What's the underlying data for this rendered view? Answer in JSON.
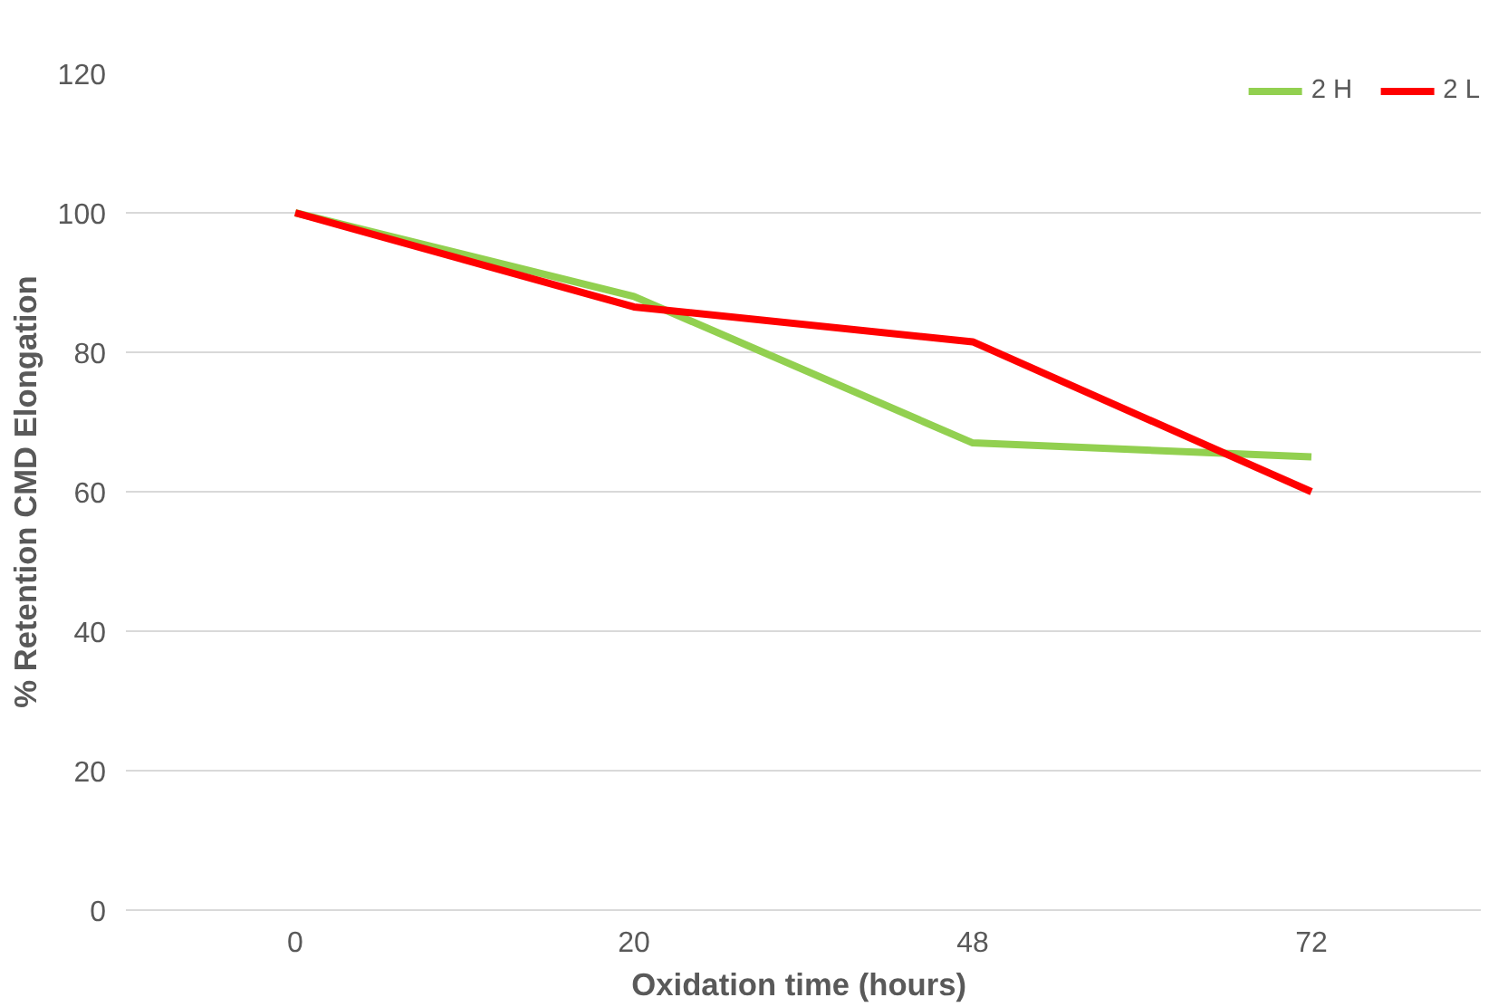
{
  "chart_data": {
    "type": "line",
    "xlabel": "Oxidation time  (hours)",
    "ylabel": "% Retention CMD Elongation",
    "categories": [
      "0",
      "20",
      "48",
      "72"
    ],
    "series": [
      {
        "name": "2 H",
        "color": "#92d050",
        "values": [
          100,
          88,
          67,
          65
        ]
      },
      {
        "name": "2 L",
        "color": "#ff0000",
        "values": [
          100,
          86.5,
          81.5,
          60
        ]
      }
    ],
    "ylim": [
      0,
      120
    ],
    "yticks": [
      0,
      20,
      40,
      60,
      80,
      100,
      120
    ],
    "grid": "y",
    "legend": "top right",
    "marker": "none",
    "line_style": "solid"
  }
}
